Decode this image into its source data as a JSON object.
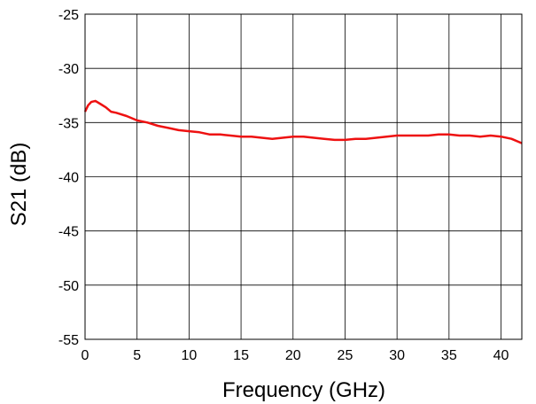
{
  "chart_data": {
    "type": "line",
    "title": "",
    "xlabel": "Frequency (GHz)",
    "ylabel": "S21 (dB)",
    "xlim": [
      0,
      42
    ],
    "ylim": [
      -55,
      -25
    ],
    "x_ticks": [
      0,
      5,
      10,
      15,
      20,
      25,
      30,
      35,
      40
    ],
    "y_ticks": [
      -55,
      -50,
      -45,
      -40,
      -35,
      -30,
      -25
    ],
    "x_tick_labels": [
      "0",
      "5",
      "10",
      "15",
      "20",
      "25",
      "30",
      "35",
      "40"
    ],
    "y_tick_labels": [
      "-55",
      "-50",
      "-45",
      "-40",
      "-35",
      "-30",
      "-25"
    ],
    "grid": true,
    "legend": "none",
    "series": [
      {
        "color": "#ee1111",
        "x": [
          0,
          0.3,
          0.6,
          1.0,
          1.5,
          2.0,
          2.5,
          3.0,
          4.0,
          5.0,
          6.0,
          7.0,
          8.0,
          9.0,
          10.0,
          11.0,
          12.0,
          13.0,
          14.0,
          15.0,
          16.0,
          17.0,
          18.0,
          19.0,
          20.0,
          21.0,
          22.0,
          23.0,
          24.0,
          25.0,
          26.0,
          27.0,
          28.0,
          29.0,
          30.0,
          31.0,
          32.0,
          33.0,
          34.0,
          35.0,
          36.0,
          37.0,
          38.0,
          39.0,
          40.0,
          41.0,
          42.0
        ],
        "y": [
          -34.0,
          -33.4,
          -33.1,
          -33.0,
          -33.3,
          -33.6,
          -34.0,
          -34.1,
          -34.4,
          -34.8,
          -35.0,
          -35.3,
          -35.5,
          -35.7,
          -35.8,
          -35.9,
          -36.1,
          -36.1,
          -36.2,
          -36.3,
          -36.3,
          -36.4,
          -36.5,
          -36.4,
          -36.3,
          -36.3,
          -36.4,
          -36.5,
          -36.6,
          -36.6,
          -36.5,
          -36.5,
          -36.4,
          -36.3,
          -36.2,
          -36.2,
          -36.2,
          -36.2,
          -36.1,
          -36.1,
          -36.2,
          -36.2,
          -36.3,
          -36.2,
          -36.3,
          -36.5,
          -36.9
        ]
      }
    ]
  }
}
